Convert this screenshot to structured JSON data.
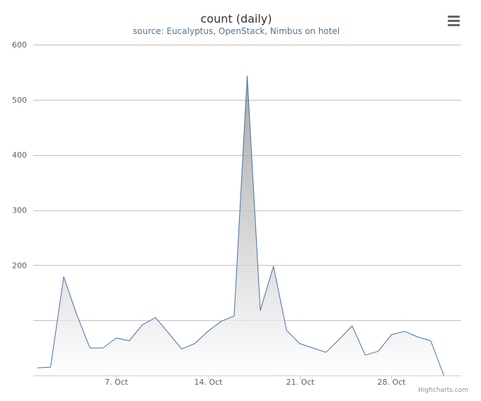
{
  "chart_data": {
    "type": "area",
    "title": "count (daily)",
    "subtitle": "source: Eucalyptus, OpenStack, Nimbus on hotel",
    "xlabel": "",
    "ylabel": "",
    "ylim": [
      0,
      600
    ],
    "y_ticks": [
      {
        "value": 200,
        "label": "200"
      },
      {
        "value": 300,
        "label": "300"
      },
      {
        "value": 400,
        "label": "400"
      },
      {
        "value": 500,
        "label": "500"
      },
      {
        "value": 600,
        "label": "600"
      }
    ],
    "y_gridlines": [
      100,
      200,
      300,
      400,
      500,
      600
    ],
    "x_ticks": [
      {
        "value": "2013-10-07",
        "label": "7. Oct"
      },
      {
        "value": "2013-10-14",
        "label": "14. Oct"
      },
      {
        "value": "2013-10-21",
        "label": "21. Oct"
      },
      {
        "value": "2013-10-28",
        "label": "28. Oct"
      }
    ],
    "x_range": [
      "2013-10-01",
      "2013-11-02"
    ],
    "series": [
      {
        "color": "#4572a7",
        "x": [
          "2013-10-01",
          "2013-10-02",
          "2013-10-03",
          "2013-10-04",
          "2013-10-05",
          "2013-10-06",
          "2013-10-07",
          "2013-10-08",
          "2013-10-09",
          "2013-10-10",
          "2013-10-11",
          "2013-10-12",
          "2013-10-13",
          "2013-10-14",
          "2013-10-15",
          "2013-10-16",
          "2013-10-17",
          "2013-10-18",
          "2013-10-19",
          "2013-10-20",
          "2013-10-21",
          "2013-10-22",
          "2013-10-23",
          "2013-10-24",
          "2013-10-25",
          "2013-10-26",
          "2013-10-27",
          "2013-10-28",
          "2013-10-29",
          "2013-10-30",
          "2013-10-31",
          "2013-11-01"
        ],
        "values": [
          14,
          15,
          179,
          110,
          50,
          50,
          68,
          63,
          92,
          105,
          77,
          48,
          58,
          80,
          98,
          108,
          543,
          118,
          198,
          82,
          58,
          50,
          42,
          65,
          90,
          37,
          44,
          74,
          80,
          70,
          63,
          0
        ]
      }
    ],
    "grid": true,
    "legend": "none"
  },
  "credits": "Highcharts.com"
}
